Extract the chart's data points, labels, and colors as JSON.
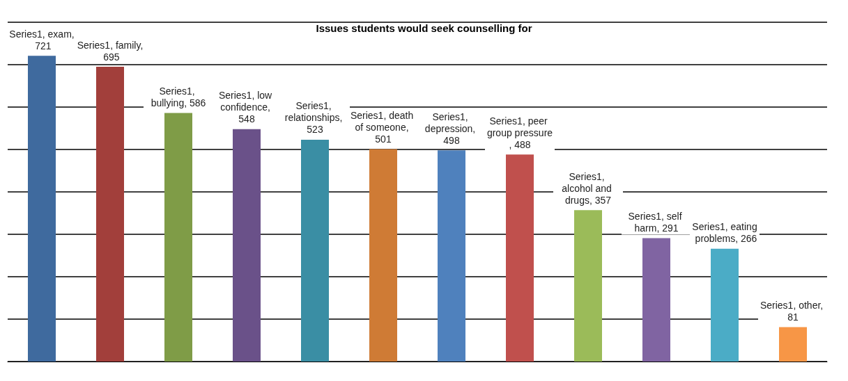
{
  "chart_data": {
    "type": "bar",
    "title": "Issues students would seek counselling for",
    "categories": [
      null,
      null,
      null,
      null,
      null,
      null,
      null,
      null,
      null,
      null,
      null,
      null
    ],
    "values": [
      721,
      695,
      586,
      548,
      523,
      501,
      498,
      488,
      357,
      291,
      266,
      81
    ],
    "colors": [
      "#3f6a9e",
      "#a23f3b",
      "#7f9c47",
      "#6a5189",
      "#3a8ea4",
      "#cf7b35",
      "#4f81bd",
      "#c0504d",
      "#9bbb59",
      "#8064a2",
      "#4bacc6",
      "#f79646"
    ],
    "value_labels": [
      "Series1, exam, 721",
      "Series1, family, 695",
      "Series1, bullying, 586",
      "Series1, low confidence, 548",
      "Series1, relationships, 523",
      "Series1, death of someone, 501",
      "Series1, depression, 498",
      "Series1, peer group pressure, 488",
      "Series1, alcohol and drugs, 357",
      "Series1, self harm, 291",
      "Series1, eating problems, 266",
      "Series1, other, 81"
    ],
    "ylim": [
      0,
      800
    ],
    "yticks": [
      {
        "value": 0,
        "label": null
      },
      {
        "value": 100,
        "label": null
      },
      {
        "value": 200,
        "label": null
      },
      {
        "value": 300,
        "label": null
      },
      {
        "value": 400,
        "label": null
      },
      {
        "value": 500,
        "label": null
      },
      {
        "value": 600,
        "label": null
      },
      {
        "value": 700,
        "label": null
      },
      {
        "value": 800,
        "label": null
      }
    ],
    "grid": "y"
  }
}
